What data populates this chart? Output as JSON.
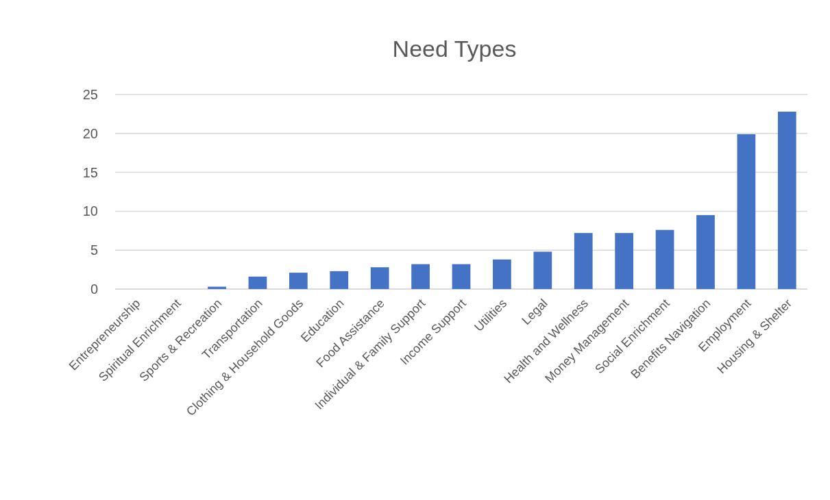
{
  "chart_data": {
    "type": "bar",
    "title": "Need Types",
    "categories": [
      "Entrepreneurship",
      "Spiritual Enrichment",
      "Sports & Recreation",
      "Transportation",
      "Clothing & Household Goods",
      "Education",
      "Food Assistance",
      "Individual & Family Support",
      "Income Support",
      "Utilities",
      "Legal",
      "Health and Wellness",
      "Money Management",
      "Social Enrichment",
      "Benefits Navigation",
      "Employment",
      "Housing & Shelter"
    ],
    "values": [
      0,
      0,
      0.3,
      1.6,
      2.1,
      2.3,
      2.8,
      3.2,
      3.2,
      3.8,
      4.8,
      7.2,
      7.2,
      7.6,
      9.5,
      19.9,
      22.8
    ],
    "color": "#4472c4",
    "ylim": [
      0,
      25
    ],
    "yticks": [
      0,
      5,
      10,
      15,
      20,
      25
    ],
    "grid": "y"
  }
}
